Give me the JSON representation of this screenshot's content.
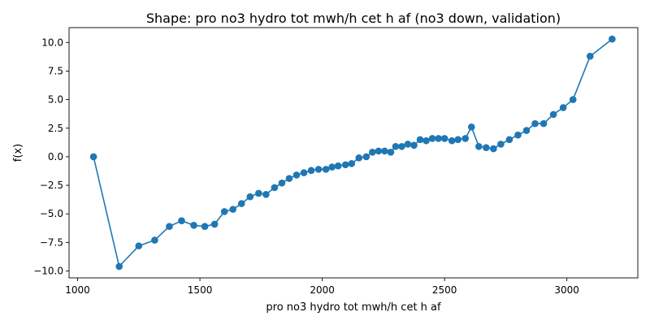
{
  "chart_data": {
    "type": "line",
    "title": "Shape: pro no3 hydro tot mwh/h cet h af (no3 down, validation)",
    "xlabel": "pro no3 hydro tot mwh/h cet h af",
    "ylabel": "f(x)",
    "xlim": [
      965,
      3290
    ],
    "ylim": [
      -10.6,
      11.3
    ],
    "x_ticks": [
      1000,
      1500,
      2000,
      2500,
      3000
    ],
    "y_ticks": [
      -10.0,
      -7.5,
      -5.0,
      -2.5,
      0.0,
      2.5,
      5.0,
      7.5,
      10.0
    ],
    "x_tick_labels": [
      "1000",
      "1500",
      "2000",
      "2500",
      "3000"
    ],
    "y_tick_labels": [
      "−10.0",
      "−7.5",
      "−5.0",
      "−2.5",
      "0.0",
      "2.5",
      "5.0",
      "7.5",
      "10.0"
    ],
    "grid": false,
    "marker": "circle",
    "color": "#1f77b4",
    "x": [
      1065,
      1170,
      1250,
      1315,
      1375,
      1425,
      1475,
      1520,
      1560,
      1600,
      1635,
      1670,
      1705,
      1740,
      1770,
      1805,
      1835,
      1865,
      1895,
      1925,
      1955,
      1985,
      2015,
      2040,
      2065,
      2095,
      2120,
      2150,
      2180,
      2205,
      2230,
      2255,
      2280,
      2300,
      2325,
      2350,
      2375,
      2400,
      2425,
      2450,
      2475,
      2500,
      2530,
      2555,
      2585,
      2610,
      2640,
      2670,
      2700,
      2730,
      2765,
      2800,
      2835,
      2870,
      2905,
      2945,
      2985,
      3025,
      3095,
      3185
    ],
    "y": [
      0.0,
      -9.6,
      -7.8,
      -7.3,
      -6.1,
      -5.6,
      -6.0,
      -6.1,
      -5.9,
      -4.8,
      -4.6,
      -4.1,
      -3.5,
      -3.2,
      -3.3,
      -2.7,
      -2.3,
      -1.9,
      -1.6,
      -1.4,
      -1.2,
      -1.1,
      -1.1,
      -0.9,
      -0.8,
      -0.7,
      -0.6,
      -0.1,
      0.0,
      0.4,
      0.5,
      0.5,
      0.4,
      0.9,
      0.9,
      1.1,
      1.0,
      1.5,
      1.4,
      1.6,
      1.6,
      1.6,
      1.4,
      1.5,
      1.6,
      2.6,
      0.9,
      0.8,
      0.7,
      1.1,
      1.5,
      1.9,
      2.3,
      2.9,
      2.9,
      3.7,
      4.3,
      5.0,
      8.8,
      10.3
    ]
  }
}
